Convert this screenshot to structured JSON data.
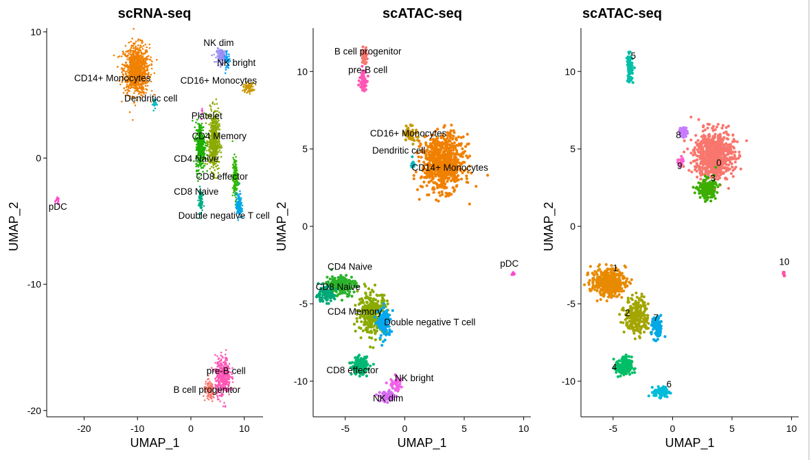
{
  "chart_data": [
    {
      "type": "scatter",
      "title": "scRNA-seq",
      "xlabel": "UMAP_1",
      "ylabel": "UMAP_2",
      "xlim": [
        -27,
        13.5
      ],
      "ylim": [
        -20.5,
        10.3
      ],
      "xticks": [
        -20,
        -10,
        0,
        10
      ],
      "yticks": [
        -20,
        -10,
        0,
        10
      ],
      "grid": false,
      "clusters": [
        {
          "name": "CD14+ Monocytes",
          "color": "#f08000",
          "center": [
            -10.2,
            7.0
          ],
          "spread": [
            2.2,
            1.8
          ],
          "n": 900,
          "label_pos": [
            -14.7,
            6.1
          ]
        },
        {
          "name": "CD16+ Monocytes",
          "color": "#c99800",
          "center": [
            10.8,
            5.6
          ],
          "spread": [
            0.9,
            0.35
          ],
          "n": 80,
          "label_pos": [
            5.2,
            5.9
          ]
        },
        {
          "name": "NK dim",
          "color": "#9b8ef2",
          "center": [
            5.8,
            8.1
          ],
          "spread": [
            0.9,
            0.5
          ],
          "n": 120,
          "label_pos": [
            5.2,
            8.9
          ]
        },
        {
          "name": "NK bright",
          "color": "#06a4ff",
          "center": [
            6.8,
            7.7
          ],
          "spread": [
            0.5,
            0.6
          ],
          "n": 40,
          "label_pos": [
            8.5,
            7.3
          ]
        },
        {
          "name": "Dendritic cell",
          "color": "#00b8c0",
          "center": [
            -6.8,
            4.3
          ],
          "spread": [
            0.3,
            0.45
          ],
          "n": 25,
          "label_pos": [
            -7.5,
            4.5
          ]
        },
        {
          "name": "Platelet",
          "color": "#f050c8",
          "center": [
            2.0,
            3.6
          ],
          "spread": [
            0.2,
            0.4
          ],
          "n": 10,
          "label_pos": [
            3.0,
            3.1
          ]
        },
        {
          "name": "CD4 Memory",
          "color": "#8aaa00",
          "center": [
            4.3,
            1.3
          ],
          "spread": [
            0.9,
            2.1
          ],
          "n": 500,
          "label_pos": [
            5.3,
            1.5
          ]
        },
        {
          "name": "CD4 Naive",
          "color": "#1cb000",
          "center": [
            1.8,
            1.0
          ],
          "spread": [
            0.8,
            1.7
          ],
          "n": 350,
          "label_pos": [
            1.0,
            -0.3
          ]
        },
        {
          "name": "CD8 effector",
          "color": "#30b800",
          "center": [
            8.3,
            -1.6
          ],
          "spread": [
            0.45,
            1.5
          ],
          "n": 160,
          "label_pos": [
            5.8,
            -1.7
          ]
        },
        {
          "name": "CD8 Naive",
          "color": "#00ad86",
          "center": [
            1.8,
            -3.3
          ],
          "spread": [
            0.35,
            0.9
          ],
          "n": 80,
          "label_pos": [
            1.0,
            -2.9
          ]
        },
        {
          "name": "Double negative T cell",
          "color": "#00a8e6",
          "center": [
            9.0,
            -3.8
          ],
          "spread": [
            0.5,
            0.9
          ],
          "n": 130,
          "label_pos": [
            6.2,
            -4.8
          ]
        },
        {
          "name": "pDC",
          "color": "#ff48cc",
          "center": [
            -25.0,
            -3.4
          ],
          "spread": [
            0.35,
            0.25
          ],
          "n": 15,
          "label_pos": [
            -24.9,
            -4.1
          ]
        },
        {
          "name": "pre-B cell",
          "color": "#ff57b5",
          "center": [
            6.0,
            -17.3
          ],
          "spread": [
            1.3,
            1.4
          ],
          "n": 400,
          "label_pos": [
            6.6,
            -17.1
          ]
        },
        {
          "name": "B cell progenitor",
          "color": "#f8766d",
          "center": [
            3.5,
            -18.5
          ],
          "spread": [
            1.0,
            0.7
          ],
          "n": 100,
          "label_pos": [
            3.0,
            -18.6
          ]
        }
      ]
    },
    {
      "type": "scatter",
      "title": "scATAC-seq",
      "xlabel": "UMAP_1",
      "ylabel": "UMAP_2",
      "xlim": [
        -7.7,
        10.6
      ],
      "ylim": [
        -12.3,
        12.8
      ],
      "xticks": [
        -5,
        0,
        5,
        10
      ],
      "yticks": [
        -10,
        -5,
        0,
        5,
        10
      ],
      "grid": false,
      "clusters": [
        {
          "name": "B cell progenitor",
          "color": "#f8766d",
          "center": [
            -3.4,
            11.0
          ],
          "spread": [
            0.2,
            0.5
          ],
          "n": 60,
          "label_pos": [
            -3.1,
            11.1
          ]
        },
        {
          "name": "pre-B cell",
          "color": "#ff57b5",
          "center": [
            -3.5,
            9.5
          ],
          "spread": [
            0.25,
            0.6
          ],
          "n": 70,
          "label_pos": [
            -3.1,
            9.9
          ]
        },
        {
          "name": "CD14+ Monocytes",
          "color": "#f08000",
          "center": [
            3.2,
            4.1
          ],
          "spread": [
            1.6,
            1.6
          ],
          "n": 750,
          "label_pos": [
            3.8,
            3.6
          ]
        },
        {
          "name": "CD16+ Monocytes",
          "color": "#c99800",
          "center": [
            0.5,
            6.0
          ],
          "spread": [
            0.5,
            0.5
          ],
          "n": 50,
          "label_pos": [
            0.3,
            5.8
          ]
        },
        {
          "name": "Dendritic cell",
          "color": "#00b8c0",
          "center": [
            0.7,
            4.1
          ],
          "spread": [
            0.15,
            0.3
          ],
          "n": 12,
          "label_pos": [
            -0.5,
            4.7
          ]
        },
        {
          "name": "pDC",
          "color": "#ff48cc",
          "center": [
            9.1,
            -3.1
          ],
          "spread": [
            0.1,
            0.15
          ],
          "n": 8,
          "label_pos": [
            8.8,
            -2.6
          ]
        },
        {
          "name": "CD4 Naive",
          "color": "#2cb32c",
          "center": [
            -5.4,
            -3.8
          ],
          "spread": [
            1.1,
            0.6
          ],
          "n": 200,
          "label_pos": [
            -4.6,
            -2.8
          ]
        },
        {
          "name": "CD8 Naive",
          "color": "#00a878",
          "center": [
            -6.7,
            -4.4
          ],
          "spread": [
            0.7,
            0.45
          ],
          "n": 100,
          "label_pos": [
            -5.6,
            -4.1
          ]
        },
        {
          "name": "CD4 Memory",
          "color": "#8aaa00",
          "center": [
            -2.7,
            -5.6
          ],
          "spread": [
            1.1,
            1.2
          ],
          "n": 320,
          "label_pos": [
            -4.2,
            -5.7
          ]
        },
        {
          "name": "Double negative T cell",
          "color": "#06a8ef",
          "center": [
            -1.7,
            -6.3
          ],
          "spread": [
            0.5,
            0.9
          ],
          "n": 120,
          "label_pos": [
            2.1,
            -6.4
          ]
        },
        {
          "name": "CD8 effector",
          "color": "#00b872",
          "center": [
            -3.8,
            -9.0
          ],
          "spread": [
            0.6,
            0.5
          ],
          "n": 160,
          "label_pos": [
            -4.4,
            -9.5
          ]
        },
        {
          "name": "NK bright",
          "color": "#f060e8",
          "center": [
            -0.7,
            -10.2
          ],
          "spread": [
            0.6,
            0.4
          ],
          "n": 40,
          "label_pos": [
            0.8,
            -10.0
          ]
        },
        {
          "name": "NK dim",
          "color": "#d56cf0",
          "center": [
            -1.4,
            -11.0
          ],
          "spread": [
            0.6,
            0.3
          ],
          "n": 90,
          "label_pos": [
            -1.4,
            -11.3
          ]
        }
      ]
    },
    {
      "type": "scatter",
      "title": "scATAC-seq",
      "xlabel": "UMAP_1",
      "ylabel": "UMAP_2",
      "xlim": [
        -7.7,
        10.6
      ],
      "ylim": [
        -12.3,
        12.8
      ],
      "xticks": [
        -5,
        0,
        5,
        10
      ],
      "yticks": [
        -10,
        -5,
        0,
        5,
        10
      ],
      "grid": false,
      "clusters": [
        {
          "name": "5",
          "color": "#00c0a8",
          "center": [
            -3.6,
            10.2
          ],
          "spread": [
            0.2,
            0.8
          ],
          "n": 110,
          "label_pos": [
            -3.3,
            10.8
          ]
        },
        {
          "name": "8",
          "color": "#c77cff",
          "center": [
            0.9,
            6.1
          ],
          "spread": [
            0.3,
            0.3
          ],
          "n": 40,
          "label_pos": [
            0.5,
            5.7
          ]
        },
        {
          "name": "0",
          "color": "#f8766d",
          "center": [
            3.5,
            4.6
          ],
          "spread": [
            1.5,
            1.4
          ],
          "n": 700,
          "label_pos": [
            3.9,
            3.9
          ]
        },
        {
          "name": "9",
          "color": "#ff61cc",
          "center": [
            0.7,
            4.2
          ],
          "spread": [
            0.2,
            0.25
          ],
          "n": 20,
          "label_pos": [
            0.6,
            3.7
          ]
        },
        {
          "name": "3",
          "color": "#3cae00",
          "center": [
            2.9,
            2.4
          ],
          "spread": [
            0.7,
            0.6
          ],
          "n": 180,
          "label_pos": [
            3.4,
            2.9
          ]
        },
        {
          "name": "10",
          "color": "#ff4fa8",
          "center": [
            9.3,
            -3.0
          ],
          "spread": [
            0.1,
            0.15
          ],
          "n": 8,
          "label_pos": [
            9.4,
            -2.5
          ]
        },
        {
          "name": "1",
          "color": "#e88a00",
          "center": [
            -5.4,
            -3.6
          ],
          "spread": [
            1.3,
            0.8
          ],
          "n": 380,
          "label_pos": [
            -4.8,
            -2.9
          ]
        },
        {
          "name": "2",
          "color": "#a3a500",
          "center": [
            -3.0,
            -5.8
          ],
          "spread": [
            0.9,
            1.1
          ],
          "n": 250,
          "label_pos": [
            -3.8,
            -5.8
          ]
        },
        {
          "name": "7",
          "color": "#00a9e6",
          "center": [
            -1.3,
            -6.6
          ],
          "spread": [
            0.4,
            0.7
          ],
          "n": 90,
          "label_pos": [
            -1.4,
            -6.1
          ]
        },
        {
          "name": "4",
          "color": "#00be67",
          "center": [
            -4.1,
            -9.1
          ],
          "spread": [
            0.6,
            0.6
          ],
          "n": 160,
          "label_pos": [
            -4.9,
            -9.3
          ]
        },
        {
          "name": "6",
          "color": "#00bcd8",
          "center": [
            -0.9,
            -10.7
          ],
          "spread": [
            0.6,
            0.3
          ],
          "n": 80,
          "label_pos": [
            -0.3,
            -10.4
          ]
        }
      ]
    }
  ]
}
